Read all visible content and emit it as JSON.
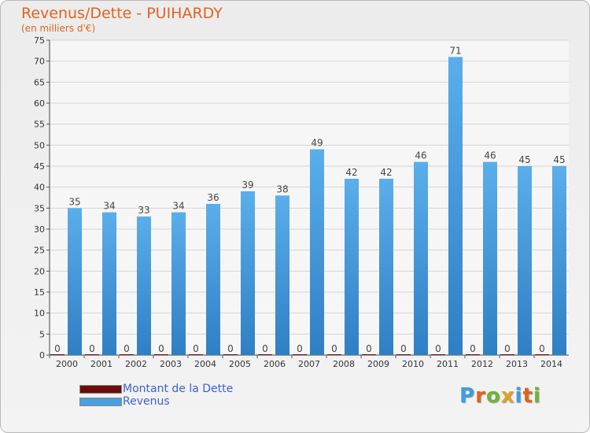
{
  "chart_data": {
    "type": "bar",
    "title": "Revenus/Dette - PUIHARDY",
    "subtitle": "(en milliers d'€)",
    "categories": [
      "2000",
      "2001",
      "2002",
      "2003",
      "2004",
      "2005",
      "2006",
      "2007",
      "2008",
      "2009",
      "2010",
      "2011",
      "2012",
      "2013",
      "2014"
    ],
    "series": [
      {
        "name": "Montant de la Dette",
        "color": "#6b0b0b",
        "values": [
          0,
          0,
          0,
          0,
          0,
          0,
          0,
          0,
          0,
          0,
          0,
          0,
          0,
          0,
          0
        ]
      },
      {
        "name": "Revenus",
        "color": "#4a9fe0",
        "values": [
          35,
          34,
          33,
          34,
          36,
          39,
          38,
          49,
          42,
          42,
          46,
          71,
          46,
          45,
          45
        ]
      }
    ],
    "ylim": [
      0,
      75
    ],
    "yticks": [
      0,
      5,
      10,
      15,
      20,
      25,
      30,
      35,
      40,
      45,
      50,
      55,
      60,
      65,
      70,
      75
    ],
    "grid": true,
    "legend_position": "bottom-left"
  },
  "logo": {
    "text": "Proxiti"
  }
}
